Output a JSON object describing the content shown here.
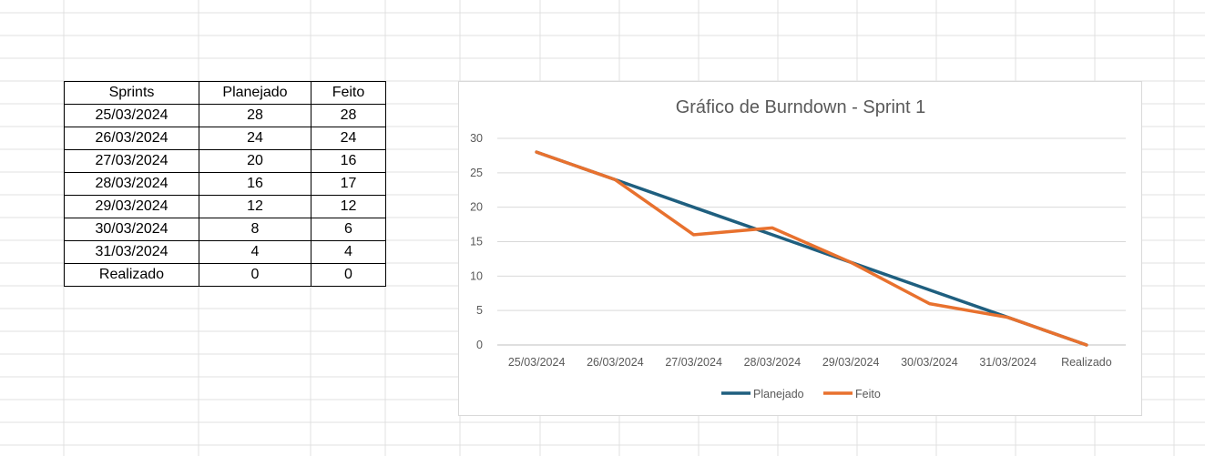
{
  "table": {
    "headers": [
      "Sprints",
      "Planejado",
      "Feito"
    ],
    "rows": [
      [
        "25/03/2024",
        "28",
        "28"
      ],
      [
        "26/03/2024",
        "24",
        "24"
      ],
      [
        "27/03/2024",
        "20",
        "16"
      ],
      [
        "28/03/2024",
        "16",
        "17"
      ],
      [
        "29/03/2024",
        "12",
        "12"
      ],
      [
        "30/03/2024",
        "8",
        "6"
      ],
      [
        "31/03/2024",
        "4",
        "4"
      ],
      [
        "Realizado",
        "0",
        "0"
      ]
    ]
  },
  "chart_data": {
    "type": "line",
    "title": "Gráfico de Burndown - Sprint 1",
    "categories": [
      "25/03/2024",
      "26/03/2024",
      "27/03/2024",
      "28/03/2024",
      "29/03/2024",
      "30/03/2024",
      "31/03/2024",
      "Realizado"
    ],
    "series": [
      {
        "name": "Planejado",
        "values": [
          28,
          24,
          20,
          16,
          12,
          8,
          4,
          0
        ],
        "color": "#1f5f7f"
      },
      {
        "name": "Feito",
        "values": [
          28,
          24,
          16,
          17,
          12,
          6,
          4,
          0
        ],
        "color": "#e8712e"
      }
    ],
    "ylim": [
      0,
      30
    ],
    "yticks": [
      0,
      5,
      10,
      15,
      20,
      25,
      30
    ],
    "grid": true,
    "legend": "bottom"
  }
}
